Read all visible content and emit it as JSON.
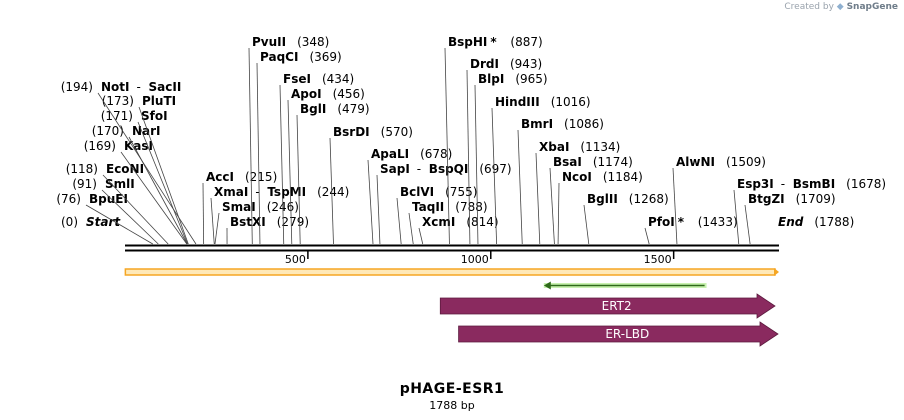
{
  "credit": {
    "prefix": "Created by",
    "brand": "SnapGene",
    "icon": "snapgene-logo-icon"
  },
  "map": {
    "length": 1788,
    "scale_ticks": [
      500,
      1000,
      1500
    ],
    "sites": [
      {
        "name": "Start",
        "pos": "(0)",
        "bp": 0,
        "italic": true
      },
      {
        "name": "BpuEI",
        "pos": "(76)",
        "bp": 76
      },
      {
        "name": "SmlI",
        "pos": "(91)",
        "bp": 91
      },
      {
        "name": "EcoNI",
        "pos": "(118)",
        "bp": 118
      },
      {
        "name": "KasI",
        "pos": "(169)",
        "bp": 169
      },
      {
        "name": "NarI",
        "pos": "(170)",
        "bp": 170
      },
      {
        "name": "SfoI",
        "pos": "(171)",
        "bp": 171
      },
      {
        "name": "PluTI",
        "pos": "(173)",
        "bp": 173
      },
      {
        "name": "NotI",
        "name2": "SacII",
        "pos": "(194)",
        "bp": 194
      },
      {
        "name": "AccI",
        "pos": "(215)",
        "bp": 215
      },
      {
        "name": "XmaI",
        "name2": "TspMI",
        "pos": "(244)",
        "bp": 244
      },
      {
        "name": "SmaI",
        "pos": "(246)",
        "bp": 246
      },
      {
        "name": "BstXI",
        "pos": "(279)",
        "bp": 279
      },
      {
        "name": "PvuII",
        "pos": "(348)",
        "bp": 348
      },
      {
        "name": "PaqCI",
        "pos": "(369)",
        "bp": 369
      },
      {
        "name": "FseI",
        "pos": "(434)",
        "bp": 434
      },
      {
        "name": "ApoI",
        "pos": "(456)",
        "bp": 456
      },
      {
        "name": "BglI",
        "pos": "(479)",
        "bp": 479
      },
      {
        "name": "BsrDI",
        "pos": "(570)",
        "bp": 570
      },
      {
        "name": "ApaLI",
        "pos": "(678)",
        "bp": 678
      },
      {
        "name": "SapI",
        "name2": "BspQI",
        "pos": "(697)",
        "bp": 697
      },
      {
        "name": "BclVI",
        "pos": "(755)",
        "bp": 755
      },
      {
        "name": "TaqII",
        "pos": "(788)",
        "bp": 788
      },
      {
        "name": "XcmI",
        "pos": "(814)",
        "bp": 814
      },
      {
        "name": "BspHI",
        "star": "*",
        "pos": "(887)",
        "bp": 887
      },
      {
        "name": "DrdI",
        "pos": "(943)",
        "bp": 943
      },
      {
        "name": "BlpI",
        "pos": "(965)",
        "bp": 965
      },
      {
        "name": "HindIII",
        "pos": "(1016)",
        "bp": 1016
      },
      {
        "name": "BmrI",
        "pos": "(1086)",
        "bp": 1086
      },
      {
        "name": "XbaI",
        "pos": "(1134)",
        "bp": 1134
      },
      {
        "name": "BsaI",
        "pos": "(1174)",
        "bp": 1174
      },
      {
        "name": "NcoI",
        "pos": "(1184)",
        "bp": 1184
      },
      {
        "name": "BglII",
        "pos": "(1268)",
        "bp": 1268
      },
      {
        "name": "PfoI",
        "star": "*",
        "pos": "(1433)",
        "bp": 1433
      },
      {
        "name": "AlwNI",
        "pos": "(1509)",
        "bp": 1509
      },
      {
        "name": "Esp3I",
        "name2": "BsmBI",
        "pos": "(1678)",
        "bp": 1678
      },
      {
        "name": "BtgZI",
        "pos": "(1709)",
        "bp": 1709
      },
      {
        "name": "End",
        "pos": "(1788)",
        "bp": 1788,
        "italic": true
      }
    ],
    "features": [
      {
        "label": "",
        "type": "orange-bar",
        "start": 1,
        "end": 1788,
        "color": "#f5a623"
      },
      {
        "label": "",
        "type": "green-arrow-left",
        "start": 1145,
        "end": 1590,
        "color": "#6abf3f"
      },
      {
        "label": "ERT2",
        "type": "arrow",
        "start": 862,
        "end": 1788,
        "color": "#8a2a5f"
      },
      {
        "label": "ER-LBD",
        "type": "arrow",
        "start": 912,
        "end": 1788,
        "color": "#8a2a5f"
      }
    ]
  },
  "plasmid": {
    "name": "pHAGE-ESR1",
    "size": "1788 bp"
  }
}
